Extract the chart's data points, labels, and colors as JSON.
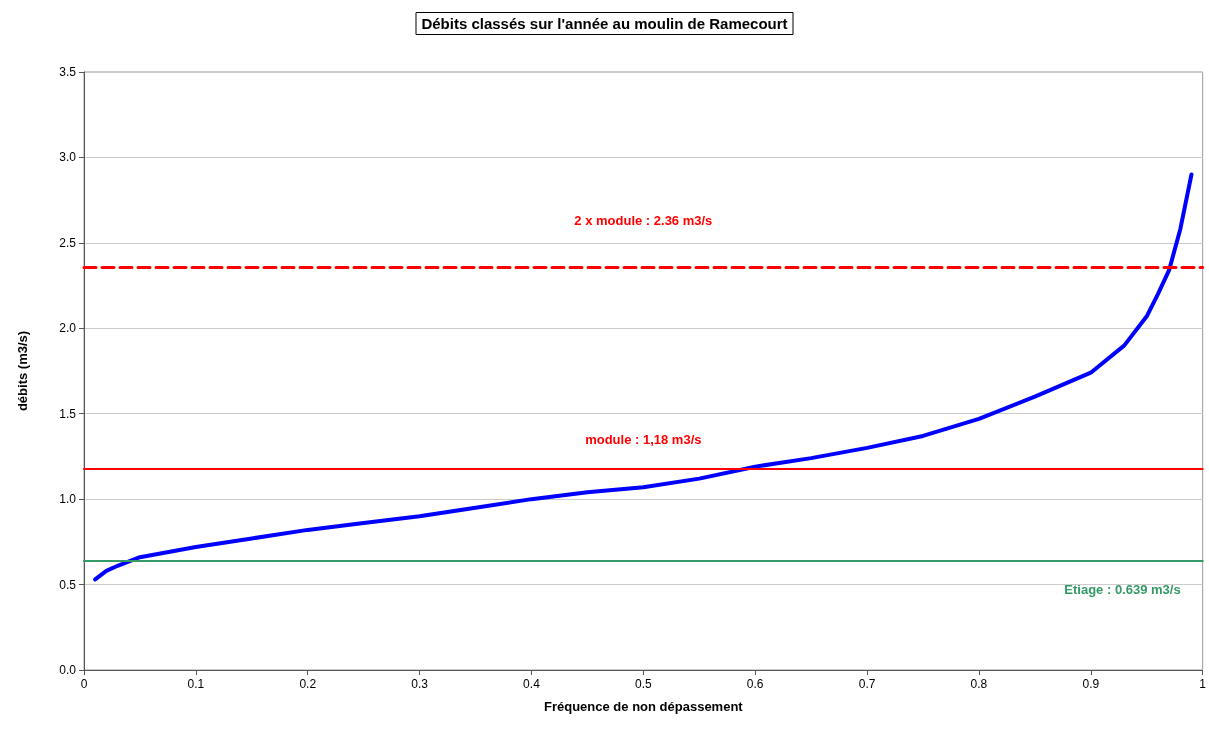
{
  "chart_data": {
    "type": "line",
    "title": "Débits classés sur l'année au moulin de Ramecourt",
    "xlabel": "Fréquence de non dépassement",
    "ylabel": "débits (m3/s)",
    "x": [
      0.01,
      0.02,
      0.03,
      0.05,
      0.1,
      0.15,
      0.2,
      0.25,
      0.3,
      0.35,
      0.4,
      0.45,
      0.5,
      0.55,
      0.6,
      0.65,
      0.7,
      0.75,
      0.8,
      0.85,
      0.9,
      0.93,
      0.95,
      0.96,
      0.97,
      0.98,
      0.99
    ],
    "series": [
      {
        "color": "#0000ff",
        "values": [
          0.53,
          0.58,
          0.61,
          0.66,
          0.72,
          0.77,
          0.82,
          0.86,
          0.9,
          0.95,
          1.0,
          1.04,
          1.07,
          1.12,
          1.19,
          1.24,
          1.3,
          1.37,
          1.47,
          1.6,
          1.74,
          1.9,
          2.07,
          2.2,
          2.34,
          2.58,
          2.9
        ]
      }
    ],
    "xlim": [
      0,
      1
    ],
    "xticks": [
      0,
      0.1,
      0.2,
      0.3,
      0.4,
      0.5,
      0.6,
      0.7,
      0.8,
      0.9,
      1
    ],
    "ylim": [
      0,
      3.5
    ],
    "yticks": [
      {
        "value": 0,
        "label": "0.0"
      },
      0.5,
      {
        "value": 1,
        "label": "1.0"
      },
      1.5,
      {
        "value": 2,
        "label": "2.0"
      },
      2.5,
      {
        "value": 3,
        "label": "3.0"
      },
      3.5
    ],
    "ref_lines": [
      {
        "axis": "y",
        "value": 2.36,
        "label": "2 x module : 2.36 m3/s",
        "color": "#ff0000",
        "line_style": "dashed"
      },
      {
        "axis": "y",
        "value": 1.18,
        "label": "module : 1,18 m3/s",
        "color": "#ff0000",
        "line_style": "solid"
      },
      {
        "axis": "y",
        "value": 0.639,
        "label": "Etiage : 0.639 m3/s",
        "color": "#339966",
        "line_style": "solid"
      }
    ],
    "grid": "y",
    "marker": "none",
    "line_style": "solid"
  }
}
